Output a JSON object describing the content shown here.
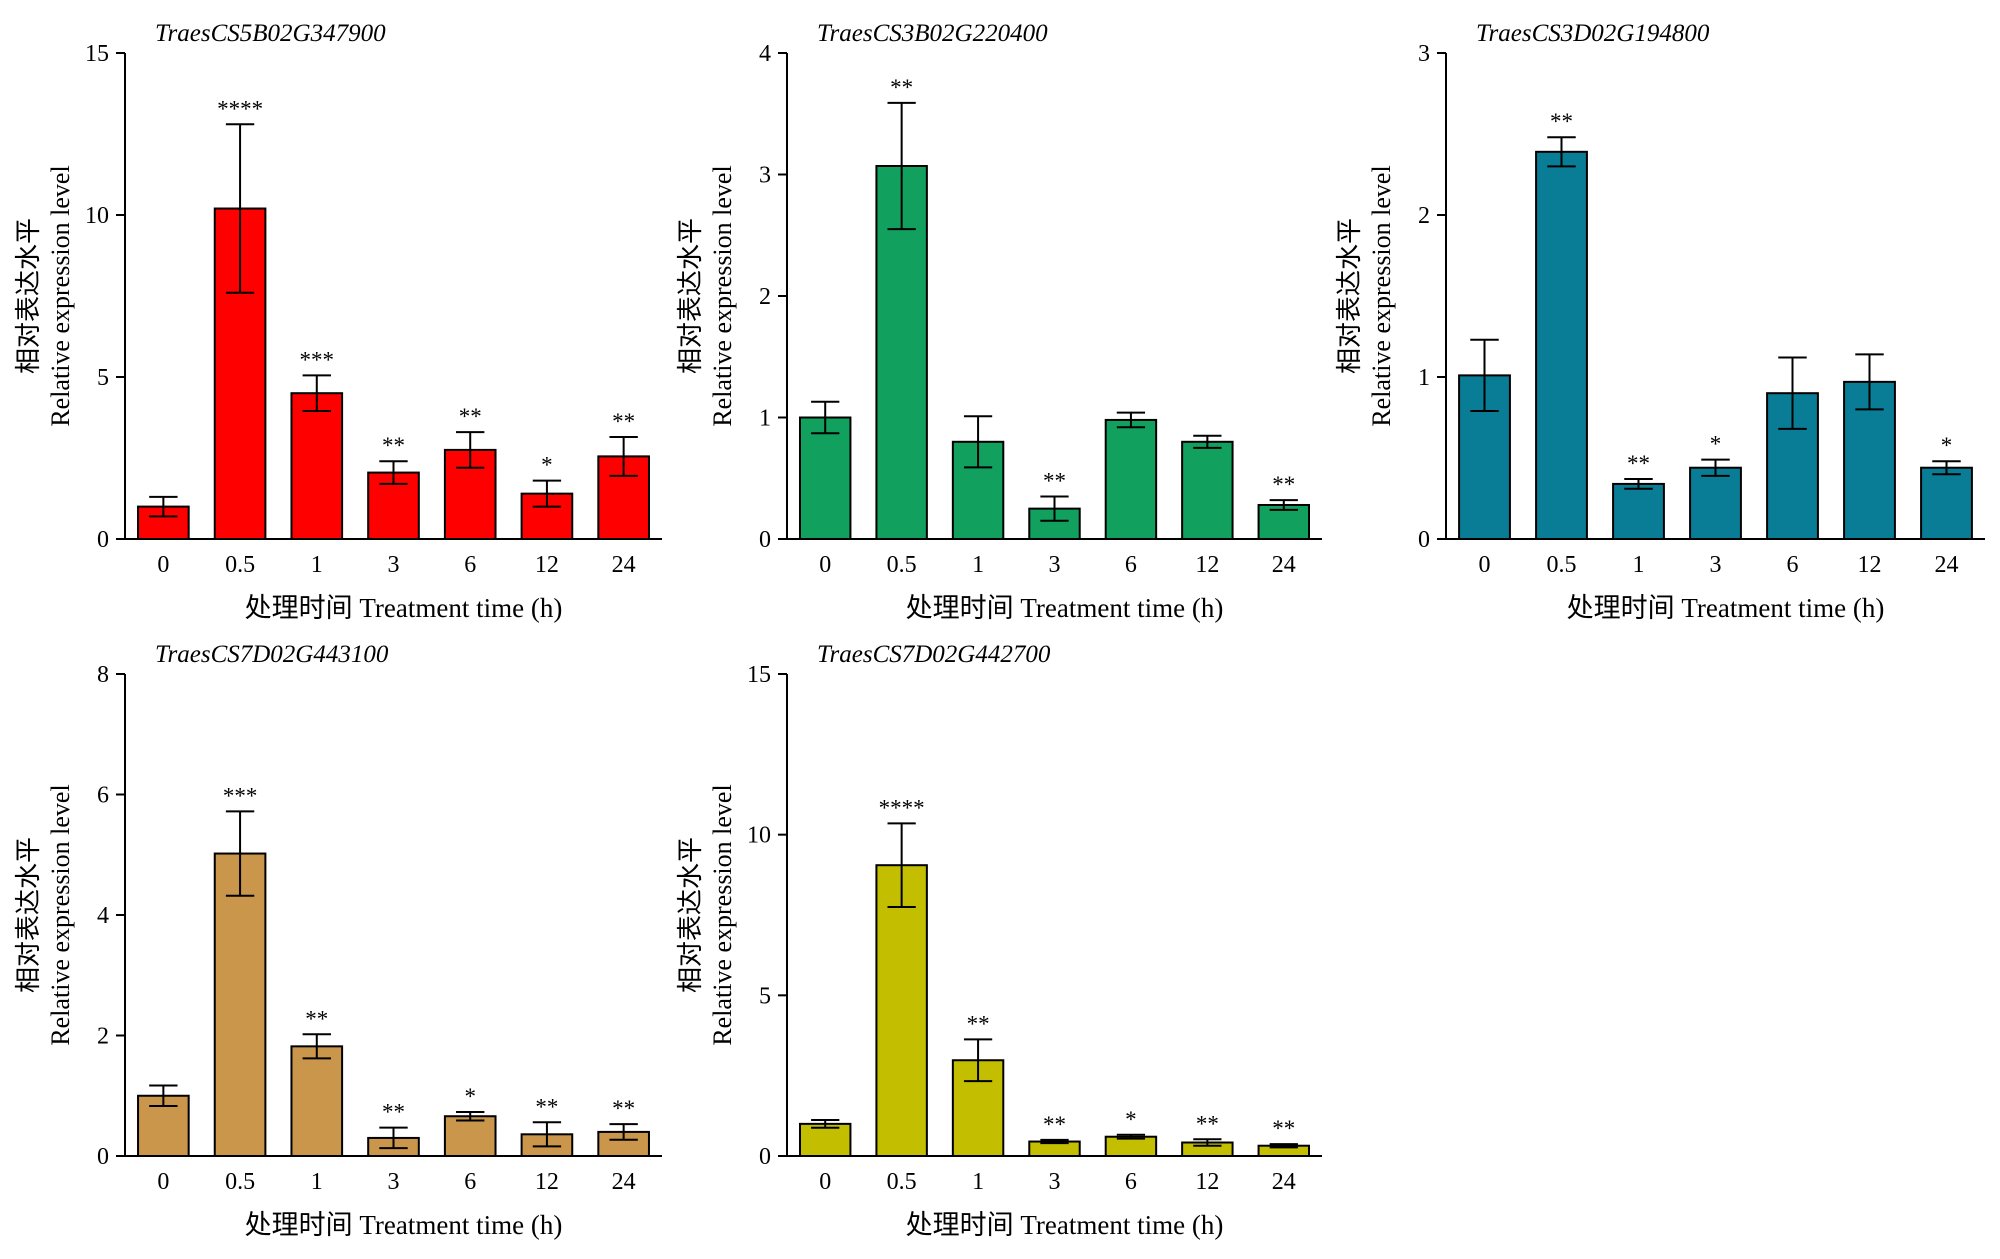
{
  "chart_data": [
    {
      "type": "bar",
      "title": "TraesCS5B02G347900",
      "xlabel": "处理时间 Treatment time (h)",
      "ylabel": [
        "相对表达水平",
        "Relative expression level"
      ],
      "categories": [
        "0",
        "0.5",
        "1",
        "3",
        "6",
        "12",
        "24"
      ],
      "ylim": [
        0,
        15
      ],
      "yticks": [
        0,
        5,
        10,
        15
      ],
      "color": "#ff0000",
      "values": [
        1.0,
        10.2,
        4.5,
        2.05,
        2.75,
        1.4,
        2.55
      ],
      "errors": [
        0.3,
        2.6,
        0.55,
        0.35,
        0.55,
        0.4,
        0.6
      ],
      "significance": [
        "",
        "****",
        "***",
        "**",
        "**",
        "*",
        "**"
      ]
    },
    {
      "type": "bar",
      "title": "TraesCS3B02G220400",
      "xlabel": "处理时间 Treatment time (h)",
      "ylabel": [
        "相对表达水平",
        "Relative expression level"
      ],
      "categories": [
        "0",
        "0.5",
        "1",
        "3",
        "6",
        "12",
        "24"
      ],
      "ylim": [
        0,
        4
      ],
      "yticks": [
        0,
        1,
        2,
        3,
        4
      ],
      "color": "#12a05e",
      "values": [
        1.0,
        3.07,
        0.8,
        0.25,
        0.98,
        0.8,
        0.28
      ],
      "errors": [
        0.13,
        0.52,
        0.21,
        0.1,
        0.06,
        0.05,
        0.04
      ],
      "significance": [
        "",
        "**",
        "",
        "**",
        "",
        "",
        "**"
      ]
    },
    {
      "type": "bar",
      "title": "TraesCS3D02G194800",
      "xlabel": "处理时间 Treatment time (h)",
      "ylabel": [
        "相对表达水平",
        "Relative expression level"
      ],
      "categories": [
        "0",
        "0.5",
        "1",
        "3",
        "6",
        "12",
        "24"
      ],
      "ylim": [
        0,
        3
      ],
      "yticks": [
        0,
        1,
        2,
        3
      ],
      "color": "#0a7d96",
      "values": [
        1.01,
        2.39,
        0.34,
        0.44,
        0.9,
        0.97,
        0.44
      ],
      "errors": [
        0.22,
        0.09,
        0.03,
        0.05,
        0.22,
        0.17,
        0.04
      ],
      "significance": [
        "",
        "**",
        "**",
        "*",
        "",
        "",
        "*"
      ]
    },
    {
      "type": "bar",
      "title": "TraesCS7D02G443100",
      "xlabel": "处理时间 Treatment time (h)",
      "ylabel": [
        "相对表达水平",
        "Relative expression level"
      ],
      "categories": [
        "0",
        "0.5",
        "1",
        "3",
        "6",
        "12",
        "24"
      ],
      "ylim": [
        0,
        8
      ],
      "yticks": [
        0,
        2,
        4,
        6,
        8
      ],
      "color": "#c9964c",
      "values": [
        1.0,
        5.02,
        1.82,
        0.3,
        0.66,
        0.36,
        0.4
      ],
      "errors": [
        0.17,
        0.7,
        0.2,
        0.17,
        0.07,
        0.2,
        0.13
      ],
      "significance": [
        "",
        "***",
        "**",
        "**",
        "*",
        "**",
        "**"
      ]
    },
    {
      "type": "bar",
      "title": "TraesCS7D02G442700",
      "xlabel": "处理时间 Treatment time (h)",
      "ylabel": [
        "相对表达水平",
        "Relative expression level"
      ],
      "categories": [
        "0",
        "0.5",
        "1",
        "3",
        "6",
        "12",
        "24"
      ],
      "ylim": [
        0,
        15
      ],
      "yticks": [
        0,
        5,
        10,
        15
      ],
      "color": "#c4be00",
      "values": [
        1.0,
        9.05,
        2.98,
        0.45,
        0.6,
        0.42,
        0.32
      ],
      "errors": [
        0.12,
        1.3,
        0.65,
        0.05,
        0.06,
        0.1,
        0.05
      ],
      "significance": [
        "",
        "****",
        "**",
        "**",
        "*",
        "**",
        "**"
      ]
    }
  ]
}
